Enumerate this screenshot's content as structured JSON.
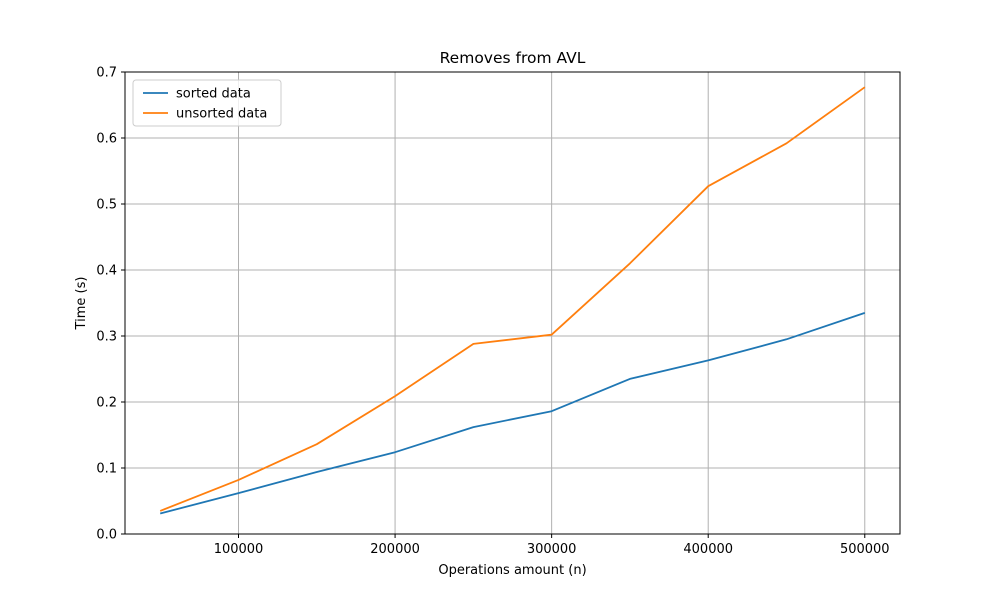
{
  "chart_data": {
    "type": "line",
    "title": "Removes from AVL",
    "xlabel": "Operations amount (n)",
    "ylabel": "Time (s)",
    "xlim": [
      27500,
      522500
    ],
    "ylim": [
      0,
      0.7
    ],
    "xticks": [
      100000,
      200000,
      300000,
      400000,
      500000
    ],
    "yticks": [
      0.0,
      0.1,
      0.2,
      0.3,
      0.4,
      0.5,
      0.6,
      0.7
    ],
    "grid": true,
    "legend_position": "upper-left",
    "x": [
      50000,
      100000,
      150000,
      200000,
      250000,
      300000,
      350000,
      400000,
      450000,
      500000
    ],
    "series": [
      {
        "name": "sorted data",
        "color": "#1f77b4",
        "values": [
          0.031,
          0.062,
          0.094,
          0.124,
          0.162,
          0.186,
          0.235,
          0.263,
          0.295,
          0.335
        ]
      },
      {
        "name": "unsorted data",
        "color": "#ff7f0e",
        "values": [
          0.035,
          0.082,
          0.136,
          0.209,
          0.288,
          0.302,
          0.41,
          0.527,
          0.592,
          0.677
        ]
      }
    ]
  }
}
